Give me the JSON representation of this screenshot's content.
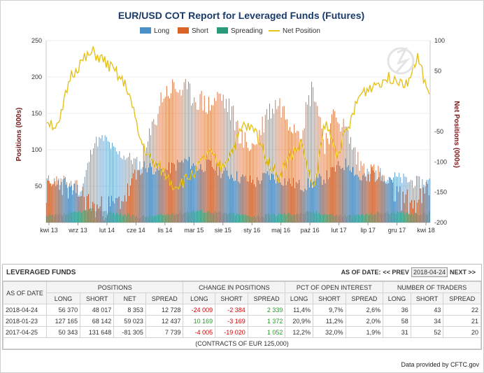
{
  "chart_data": {
    "type": "bar",
    "title": "EUR/USD COT Report for Leveraged Funds (Futures)",
    "ylabel_left": "Positions (000s)",
    "ylabel_right": "Net Positions (000s)",
    "ylim_left": [
      0,
      250
    ],
    "ylim_right": [
      -200,
      100
    ],
    "y_ticks_left": [
      "250",
      "200",
      "150",
      "100",
      "50"
    ],
    "y_ticks_right": [
      "100",
      "50",
      "-50",
      "-100",
      "-150",
      "-200"
    ],
    "x_ticks": [
      "kwi 13",
      "wrz 13",
      "lut 14",
      "cze 14",
      "lis 14",
      "mar 15",
      "sie 15",
      "sty 16",
      "maj 16",
      "paź 16",
      "lut 17",
      "lip 17",
      "gru 17",
      "kwi 18"
    ],
    "legend": [
      "Long",
      "Short",
      "Spreading",
      "Net Position"
    ],
    "colors": {
      "long": "#4a90c8",
      "short": "#d9642a",
      "spreading": "#2a9a7a",
      "net": "#e6c21a"
    },
    "series": [
      {
        "name": "Long",
        "anchors": [
          58,
          55,
          50,
          45,
          110,
          115,
          95,
          90,
          80,
          75,
          70,
          78,
          85,
          75,
          80,
          70,
          65,
          60,
          55,
          65,
          60,
          55,
          50,
          55,
          62,
          75,
          82,
          60,
          70,
          65,
          62,
          58,
          55,
          56
        ]
      },
      {
        "name": "Short",
        "anchors": [
          40,
          60,
          45,
          40,
          20,
          20,
          25,
          40,
          70,
          120,
          175,
          185,
          180,
          170,
          160,
          175,
          150,
          110,
          105,
          150,
          165,
          140,
          130,
          190,
          110,
          150,
          120,
          80,
          70,
          60,
          40,
          30,
          25,
          48
        ]
      },
      {
        "name": "Spreading",
        "anchors": [
          8,
          10,
          12,
          15,
          18,
          16,
          12,
          10,
          8,
          9,
          10,
          12,
          14,
          16,
          15,
          13,
          12,
          10,
          9,
          10,
          11,
          12,
          13,
          14,
          12,
          10,
          9,
          10,
          12,
          14,
          13,
          12,
          12,
          13
        ]
      },
      {
        "name": "Net Position",
        "anchors": [
          -30,
          -45,
          40,
          65,
          80,
          65,
          45,
          20,
          -60,
          -100,
          -115,
          -140,
          -130,
          -110,
          -85,
          -110,
          -80,
          -40,
          -50,
          -95,
          -125,
          -90,
          -70,
          -150,
          -35,
          -85,
          -45,
          10,
          25,
          35,
          40,
          30,
          70,
          10
        ]
      }
    ]
  },
  "table": {
    "title": "LEVERAGED FUNDS",
    "as_of_label": "AS OF DATE:",
    "prev_label": "<< PREV",
    "selected_date": "2018-04-24",
    "next_label": "NEXT >>",
    "headers": {
      "as_of_date": "AS OF DATE",
      "positions": "POSITIONS",
      "changes": "CHANGE IN POSITIONS",
      "pct": "PCT OF OPEN INTEREST",
      "traders": "NUMBER OF TRADERS",
      "long": "LONG",
      "short": "SHORT",
      "net": "NET",
      "spread": "SPREAD"
    },
    "rows": [
      {
        "date": "2018-04-24",
        "pos_long": "56 370",
        "pos_short": "48 017",
        "pos_net": "8 353",
        "pos_spread": "12 728",
        "ch_long": "-24 009",
        "ch_short": "-2 384",
        "ch_spread": "2 339",
        "pct_long": "11,4%",
        "pct_short": "9,7%",
        "pct_spread": "2,6%",
        "tr_long": "36",
        "tr_short": "43",
        "tr_spread": "22"
      },
      {
        "date": "2018-01-23",
        "pos_long": "127 165",
        "pos_short": "68 142",
        "pos_net": "59 023",
        "pos_spread": "12 437",
        "ch_long": "10 169",
        "ch_short": "-3 169",
        "ch_spread": "1 372",
        "pct_long": "20,9%",
        "pct_short": "11,2%",
        "pct_spread": "2,0%",
        "tr_long": "58",
        "tr_short": "34",
        "tr_spread": "21"
      },
      {
        "date": "2017-04-25",
        "pos_long": "50 343",
        "pos_short": "131 648",
        "pos_net": "-81 305",
        "pos_spread": "7 739",
        "ch_long": "-4 005",
        "ch_short": "-19 020",
        "ch_spread": "1 052",
        "pct_long": "12,2%",
        "pct_short": "32,0%",
        "pct_spread": "1,9%",
        "tr_long": "31",
        "tr_short": "52",
        "tr_spread": "20"
      }
    ],
    "footnote": "(CONTRACTS OF EUR 125,000)"
  },
  "credit": "Data provided by CFTC.gov"
}
